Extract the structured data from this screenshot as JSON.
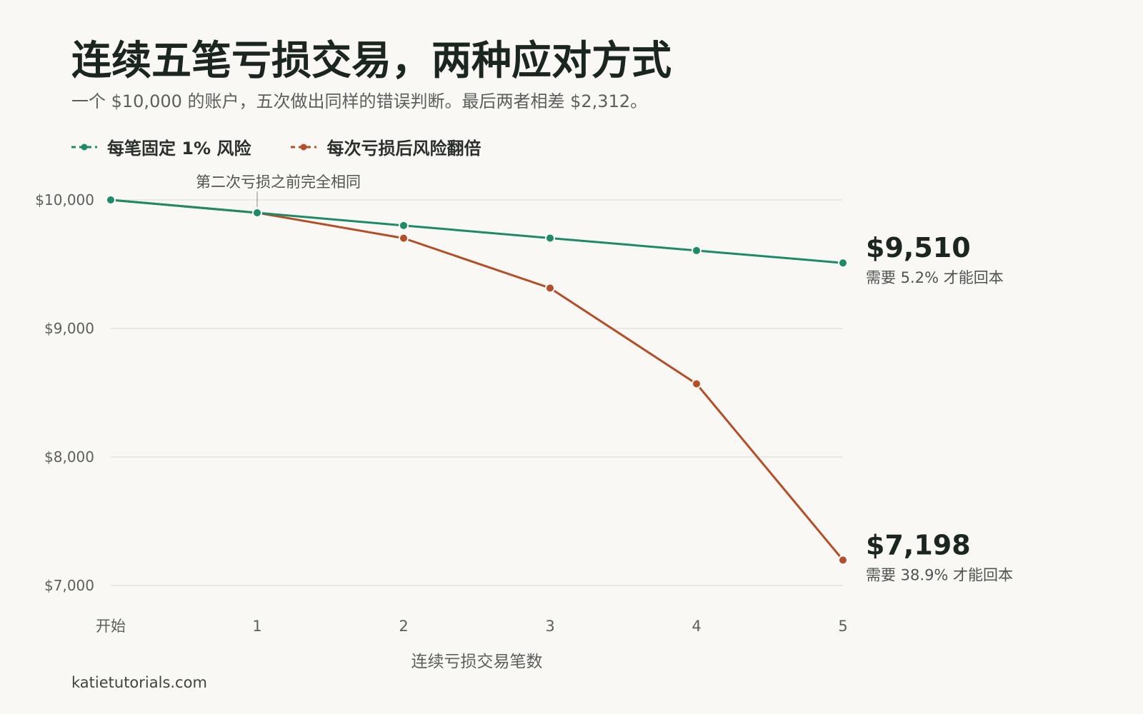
{
  "title": "连续五笔亏损交易，两种应对方式",
  "subtitle": "一个 $10,000 的账户，五次做出同样的错误判断。最后两者相差 $2,312。",
  "source": "katietutorials.com",
  "colors": {
    "fixed": "#1d8a68",
    "doubling": "#b34e28",
    "grid": "#e6e4df",
    "axis_text": "#5b605c",
    "background": "#f9f8f5"
  },
  "chart_data": {
    "type": "line",
    "title": "连续五笔亏损交易，两种应对方式",
    "xlabel": "连续亏损交易笔数",
    "ylabel": "",
    "categories": [
      "开始",
      "1",
      "2",
      "3",
      "4",
      "5"
    ],
    "ylim": [
      7000,
      10000
    ],
    "yticks": [
      10000,
      9000,
      8000,
      7000
    ],
    "ytick_labels": [
      "$10,000",
      "$9,000",
      "$8,000",
      "$7,000"
    ],
    "grid": true,
    "legend_position": "top-left",
    "series": [
      {
        "name": "每笔固定 1% 风险",
        "color_key": "fixed",
        "values": [
          10000,
          9900,
          9801,
          9703,
          9606,
          9510
        ],
        "end_value_label": "$9,510",
        "end_note": "需要 5.2% 才能回本"
      },
      {
        "name": "每次亏损后风险翻倍",
        "color_key": "doubling",
        "values": [
          10000,
          9900,
          9702,
          9314,
          8569,
          7198
        ],
        "end_value_label": "$7,198",
        "end_note": "需要 38.9% 才能回本"
      }
    ],
    "annotation": {
      "text": "第二次亏损之前完全相同",
      "x_index": 1
    }
  }
}
